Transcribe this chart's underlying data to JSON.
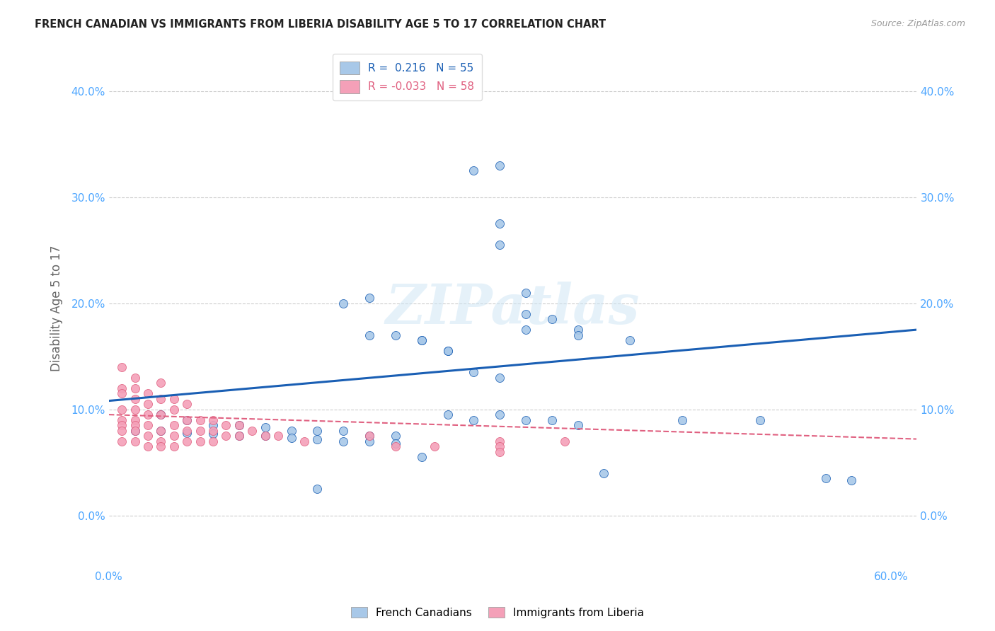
{
  "title": "FRENCH CANADIAN VS IMMIGRANTS FROM LIBERIA DISABILITY AGE 5 TO 17 CORRELATION CHART",
  "source": "Source: ZipAtlas.com",
  "ylabel": "Disability Age 5 to 17",
  "xlim": [
    0.0,
    0.62
  ],
  "ylim": [
    -0.05,
    0.44
  ],
  "yticks": [
    0.0,
    0.1,
    0.2,
    0.3,
    0.4
  ],
  "xticks": [
    0.0,
    0.1,
    0.2,
    0.3,
    0.4,
    0.5,
    0.6
  ],
  "r_blue": 0.216,
  "n_blue": 55,
  "r_pink": -0.033,
  "n_pink": 58,
  "blue_color": "#a8c8e8",
  "pink_color": "#f4a0b8",
  "line_blue": "#1a5fb4",
  "line_pink": "#e06080",
  "legend_label_blue": "French Canadians",
  "legend_label_pink": "Immigrants from Liberia",
  "blue_scatter_x": [
    0.3,
    0.28,
    0.3,
    0.3,
    0.32,
    0.2,
    0.22,
    0.24,
    0.26,
    0.28,
    0.18,
    0.2,
    0.24,
    0.26,
    0.3,
    0.32,
    0.34,
    0.36,
    0.04,
    0.06,
    0.08,
    0.1,
    0.12,
    0.14,
    0.16,
    0.18,
    0.2,
    0.22,
    0.02,
    0.04,
    0.06,
    0.08,
    0.1,
    0.12,
    0.14,
    0.16,
    0.18,
    0.2,
    0.22,
    0.32,
    0.36,
    0.4,
    0.44,
    0.5,
    0.55,
    0.57,
    0.26,
    0.28,
    0.3,
    0.32,
    0.34,
    0.36,
    0.38,
    0.24,
    0.16
  ],
  "blue_scatter_y": [
    0.33,
    0.325,
    0.275,
    0.255,
    0.21,
    0.205,
    0.17,
    0.165,
    0.155,
    0.135,
    0.2,
    0.17,
    0.165,
    0.155,
    0.13,
    0.19,
    0.185,
    0.175,
    0.095,
    0.09,
    0.085,
    0.085,
    0.083,
    0.08,
    0.08,
    0.08,
    0.075,
    0.075,
    0.08,
    0.08,
    0.078,
    0.077,
    0.075,
    0.075,
    0.073,
    0.072,
    0.07,
    0.07,
    0.068,
    0.175,
    0.17,
    0.165,
    0.09,
    0.09,
    0.035,
    0.033,
    0.095,
    0.09,
    0.095,
    0.09,
    0.09,
    0.085,
    0.04,
    0.055,
    0.025
  ],
  "pink_scatter_x": [
    0.01,
    0.01,
    0.01,
    0.01,
    0.01,
    0.01,
    0.01,
    0.01,
    0.02,
    0.02,
    0.02,
    0.02,
    0.02,
    0.02,
    0.02,
    0.02,
    0.03,
    0.03,
    0.03,
    0.03,
    0.03,
    0.03,
    0.04,
    0.04,
    0.04,
    0.04,
    0.04,
    0.05,
    0.05,
    0.05,
    0.05,
    0.05,
    0.06,
    0.06,
    0.06,
    0.06,
    0.07,
    0.07,
    0.07,
    0.08,
    0.08,
    0.08,
    0.09,
    0.09,
    0.1,
    0.1,
    0.11,
    0.12,
    0.13,
    0.2,
    0.22,
    0.25,
    0.3,
    0.3,
    0.3,
    0.35,
    0.15,
    0.04
  ],
  "pink_scatter_y": [
    0.14,
    0.12,
    0.115,
    0.1,
    0.09,
    0.085,
    0.08,
    0.07,
    0.13,
    0.12,
    0.11,
    0.1,
    0.09,
    0.085,
    0.08,
    0.07,
    0.115,
    0.105,
    0.095,
    0.085,
    0.075,
    0.065,
    0.125,
    0.11,
    0.095,
    0.08,
    0.07,
    0.11,
    0.1,
    0.085,
    0.075,
    0.065,
    0.105,
    0.09,
    0.08,
    0.07,
    0.09,
    0.08,
    0.07,
    0.09,
    0.08,
    0.07,
    0.085,
    0.075,
    0.085,
    0.075,
    0.08,
    0.075,
    0.075,
    0.075,
    0.065,
    0.065,
    0.07,
    0.065,
    0.06,
    0.07,
    0.07,
    0.065
  ],
  "watermark": "ZIPatlas",
  "background_color": "#ffffff",
  "grid_color": "#cccccc",
  "tick_color": "#4da6ff"
}
